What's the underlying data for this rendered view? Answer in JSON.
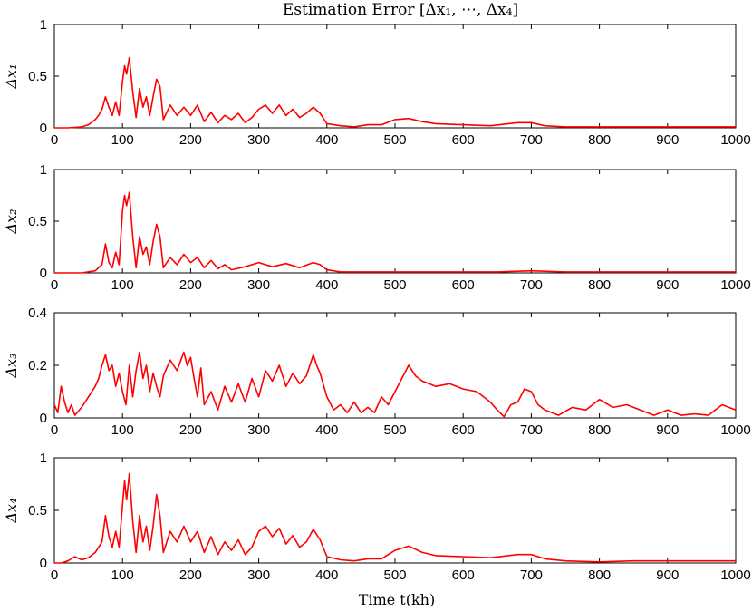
{
  "chart_data": {
    "type": "line",
    "title": "Estimation Error [Δx₁, ⋯, Δx₄]",
    "xlabel": "Time t(kh)",
    "xlim": [
      0,
      1000
    ],
    "x_ticks": [
      "0",
      "100",
      "200",
      "300",
      "400",
      "500",
      "600",
      "700",
      "800",
      "900",
      "1000"
    ],
    "line_color": "#ff0000",
    "subplots": [
      {
        "ylabel": "Δx₁",
        "ylim": [
          0,
          1
        ],
        "y_ticks": [
          "0",
          "0.5",
          "1"
        ],
        "series": [
          {
            "name": "Δx1",
            "x": [
              0,
              20,
              40,
              50,
              60,
              65,
              70,
              75,
              80,
              85,
              90,
              95,
              100,
              103,
              106,
              110,
              115,
              120,
              125,
              130,
              135,
              140,
              145,
              150,
              155,
              160,
              170,
              180,
              190,
              200,
              210,
              220,
              230,
              240,
              250,
              260,
              270,
              280,
              290,
              300,
              310,
              320,
              330,
              340,
              350,
              360,
              370,
              380,
              390,
              400,
              420,
              440,
              460,
              480,
              500,
              520,
              540,
              560,
              600,
              640,
              680,
              700,
              720,
              750,
              800,
              850,
              900,
              950,
              1000
            ],
            "y": [
              0,
              0,
              0.01,
              0.03,
              0.08,
              0.12,
              0.18,
              0.3,
              0.2,
              0.12,
              0.25,
              0.12,
              0.45,
              0.6,
              0.52,
              0.68,
              0.35,
              0.1,
              0.38,
              0.2,
              0.3,
              0.12,
              0.3,
              0.47,
              0.4,
              0.08,
              0.22,
              0.12,
              0.2,
              0.12,
              0.22,
              0.06,
              0.15,
              0.05,
              0.12,
              0.08,
              0.14,
              0.05,
              0.1,
              0.18,
              0.22,
              0.14,
              0.22,
              0.12,
              0.18,
              0.1,
              0.14,
              0.2,
              0.14,
              0.04,
              0.02,
              0.01,
              0.03,
              0.03,
              0.08,
              0.09,
              0.06,
              0.04,
              0.03,
              0.02,
              0.05,
              0.05,
              0.02,
              0.01,
              0.01,
              0.01,
              0.01,
              0.01,
              0.01
            ]
          }
        ]
      },
      {
        "ylabel": "Δx₂",
        "ylim": [
          0,
          1
        ],
        "y_ticks": [
          "0",
          "0.5",
          "1"
        ],
        "series": [
          {
            "name": "Δx2",
            "x": [
              0,
              40,
              60,
              70,
              75,
              80,
              85,
              90,
              95,
              100,
              103,
              106,
              110,
              115,
              120,
              125,
              130,
              135,
              140,
              145,
              150,
              155,
              160,
              170,
              180,
              190,
              200,
              210,
              220,
              230,
              240,
              250,
              260,
              280,
              300,
              320,
              340,
              360,
              380,
              390,
              400,
              420,
              450,
              500,
              550,
              600,
              650,
              700,
              750,
              800,
              850,
              900,
              950,
              1000
            ],
            "y": [
              0,
              0,
              0.02,
              0.08,
              0.28,
              0.1,
              0.05,
              0.2,
              0.08,
              0.6,
              0.75,
              0.65,
              0.78,
              0.35,
              0.05,
              0.35,
              0.18,
              0.25,
              0.08,
              0.3,
              0.47,
              0.35,
              0.05,
              0.15,
              0.08,
              0.18,
              0.1,
              0.15,
              0.05,
              0.12,
              0.04,
              0.08,
              0.03,
              0.06,
              0.1,
              0.06,
              0.09,
              0.05,
              0.1,
              0.08,
              0.03,
              0.01,
              0.01,
              0.01,
              0.01,
              0.01,
              0.01,
              0.02,
              0.01,
              0.01,
              0.01,
              0.01,
              0.01,
              0.01
            ]
          }
        ]
      },
      {
        "ylabel": "Δx₃",
        "ylim": [
          0,
          0.4
        ],
        "y_ticks": [
          "0",
          "0.2",
          "0.4"
        ],
        "series": [
          {
            "name": "Δx3",
            "x": [
              0,
              5,
              10,
              15,
              20,
              25,
              30,
              40,
              50,
              60,
              65,
              70,
              75,
              80,
              85,
              90,
              95,
              100,
              105,
              110,
              115,
              120,
              125,
              130,
              135,
              140,
              145,
              150,
              155,
              160,
              170,
              180,
              190,
              195,
              200,
              205,
              210,
              215,
              220,
              230,
              240,
              250,
              260,
              270,
              280,
              290,
              300,
              310,
              320,
              330,
              340,
              350,
              360,
              370,
              380,
              385,
              390,
              400,
              410,
              420,
              430,
              440,
              450,
              460,
              470,
              480,
              490,
              500,
              510,
              520,
              530,
              540,
              560,
              580,
              600,
              620,
              640,
              650,
              660,
              670,
              680,
              690,
              700,
              710,
              720,
              740,
              760,
              780,
              800,
              820,
              840,
              860,
              880,
              900,
              920,
              940,
              960,
              980,
              1000
            ],
            "y": [
              0.05,
              0.02,
              0.12,
              0.06,
              0.02,
              0.05,
              0.01,
              0.04,
              0.08,
              0.12,
              0.15,
              0.2,
              0.24,
              0.18,
              0.2,
              0.12,
              0.17,
              0.1,
              0.05,
              0.2,
              0.08,
              0.18,
              0.25,
              0.15,
              0.2,
              0.1,
              0.17,
              0.12,
              0.08,
              0.16,
              0.22,
              0.18,
              0.25,
              0.2,
              0.23,
              0.15,
              0.08,
              0.19,
              0.05,
              0.1,
              0.03,
              0.12,
              0.06,
              0.13,
              0.06,
              0.15,
              0.08,
              0.18,
              0.14,
              0.2,
              0.12,
              0.17,
              0.13,
              0.16,
              0.24,
              0.2,
              0.17,
              0.08,
              0.03,
              0.05,
              0.02,
              0.06,
              0.02,
              0.04,
              0.02,
              0.08,
              0.05,
              0.1,
              0.15,
              0.2,
              0.16,
              0.14,
              0.12,
              0.13,
              0.11,
              0.1,
              0.06,
              0.03,
              0.005,
              0.05,
              0.06,
              0.11,
              0.1,
              0.05,
              0.03,
              0.01,
              0.04,
              0.03,
              0.07,
              0.04,
              0.05,
              0.03,
              0.01,
              0.03,
              0.01,
              0.015,
              0.01,
              0.05,
              0.03
            ]
          }
        ]
      },
      {
        "ylabel": "Δx₄",
        "ylim": [
          0,
          1
        ],
        "y_ticks": [
          "0",
          "0.5",
          "1"
        ],
        "series": [
          {
            "name": "Δx4",
            "x": [
              0,
              10,
              20,
              30,
              40,
              50,
              60,
              65,
              70,
              75,
              80,
              85,
              90,
              95,
              100,
              103,
              106,
              110,
              115,
              120,
              125,
              130,
              135,
              140,
              145,
              150,
              155,
              160,
              170,
              180,
              190,
              200,
              210,
              220,
              230,
              240,
              250,
              260,
              270,
              280,
              290,
              300,
              310,
              320,
              330,
              340,
              350,
              360,
              370,
              380,
              390,
              400,
              420,
              440,
              460,
              480,
              500,
              520,
              540,
              560,
              600,
              640,
              680,
              700,
              720,
              750,
              800,
              850,
              900,
              950,
              1000
            ],
            "y": [
              0,
              0,
              0.02,
              0.06,
              0.03,
              0.05,
              0.1,
              0.15,
              0.2,
              0.45,
              0.25,
              0.15,
              0.3,
              0.15,
              0.55,
              0.78,
              0.6,
              0.85,
              0.4,
              0.1,
              0.45,
              0.2,
              0.35,
              0.12,
              0.35,
              0.65,
              0.45,
              0.1,
              0.3,
              0.2,
              0.35,
              0.2,
              0.3,
              0.1,
              0.25,
              0.08,
              0.2,
              0.12,
              0.22,
              0.08,
              0.15,
              0.3,
              0.35,
              0.25,
              0.33,
              0.18,
              0.26,
              0.15,
              0.2,
              0.32,
              0.22,
              0.06,
              0.03,
              0.02,
              0.04,
              0.04,
              0.12,
              0.16,
              0.1,
              0.07,
              0.06,
              0.05,
              0.08,
              0.08,
              0.04,
              0.02,
              0.01,
              0.02,
              0.02,
              0.02,
              0.02
            ]
          }
        ]
      }
    ]
  }
}
